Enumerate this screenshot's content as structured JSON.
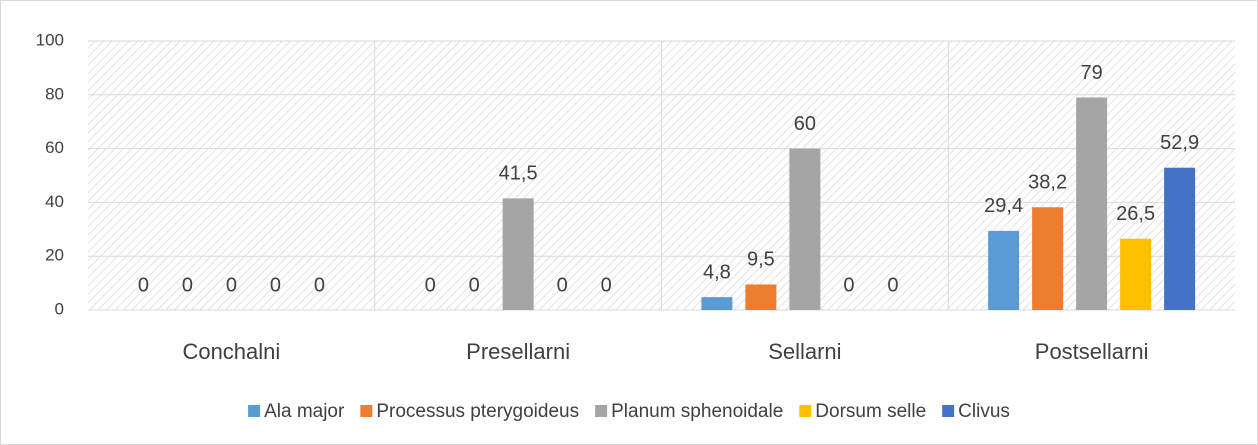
{
  "chart_data": {
    "type": "bar",
    "categories": [
      "Conchalni",
      "Presellarni",
      "Sellarni",
      "Postsellarni"
    ],
    "series": [
      {
        "name": "Ala major",
        "color": "#5b9bd5",
        "values": [
          0,
          0,
          4.8,
          29.4
        ],
        "value_labels": [
          "0",
          "0",
          "4,8",
          "29,4"
        ]
      },
      {
        "name": "Processus pterygoideus",
        "color": "#ed7d31",
        "values": [
          0,
          0,
          9.5,
          38.2
        ],
        "value_labels": [
          "0",
          "0",
          "9,5",
          "38,2"
        ]
      },
      {
        "name": "Planum sphenoidale",
        "color": "#a5a5a5",
        "values": [
          0,
          41.5,
          60,
          79
        ],
        "value_labels": [
          "0",
          "41,5",
          "60",
          "79"
        ]
      },
      {
        "name": "Dorsum selle",
        "color": "#ffc000",
        "values": [
          0,
          0,
          0,
          26.5
        ],
        "value_labels": [
          "0",
          "0",
          "0",
          "26,5"
        ]
      },
      {
        "name": "Clivus",
        "color": "#4472c4",
        "values": [
          0,
          0,
          0,
          52.9
        ],
        "value_labels": [
          "0",
          "0",
          "0",
          "52,9"
        ]
      }
    ],
    "ylim": [
      0,
      100
    ],
    "yticks": [
      0,
      20,
      40,
      60,
      80,
      100
    ],
    "grid": true,
    "legend": "bottom"
  }
}
